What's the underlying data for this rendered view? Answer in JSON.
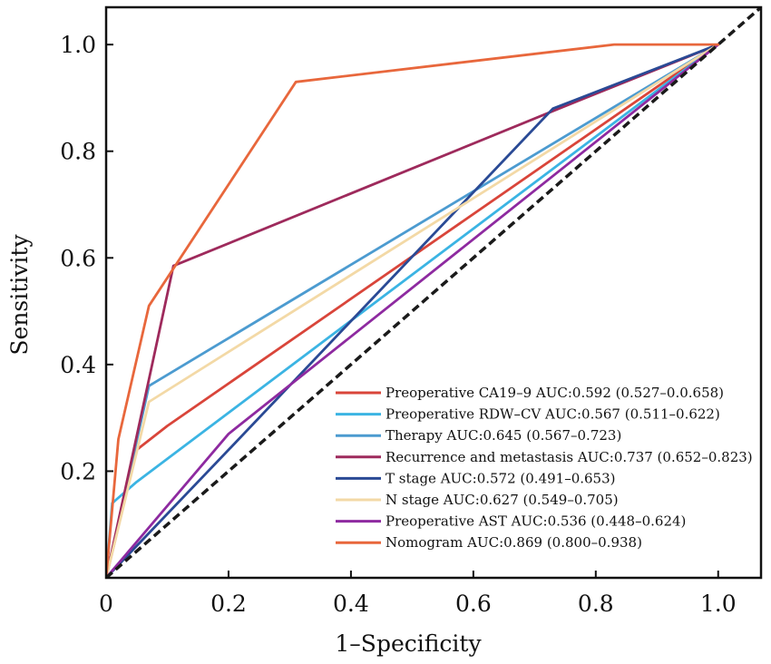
{
  "chart_data": {
    "type": "line",
    "title": "",
    "xlabel": "1–Specificity",
    "ylabel": "Sensitivity",
    "xlim": [
      0,
      1.07
    ],
    "ylim": [
      0,
      1.07
    ],
    "x_ticks": [
      0,
      0.2,
      0.4,
      0.6,
      0.8,
      1.0
    ],
    "x_tick_labels": [
      "0",
      "0.2",
      "0.4",
      "0.6",
      "0.8",
      "1.0"
    ],
    "y_ticks": [
      0.2,
      0.4,
      0.6,
      0.8,
      1.0
    ],
    "y_tick_labels": [
      "0.2",
      "0.4",
      "0.6",
      "0.8",
      "1.0"
    ],
    "grid": false,
    "legend_position": "bottom-right",
    "reference_line": {
      "style": "dashed",
      "color": "#1a1a1a",
      "points": [
        [
          0,
          0
        ],
        [
          1.07,
          1.07
        ]
      ]
    },
    "series": [
      {
        "name": "Preoperative CA19–9 AUC:0.592 (0.527–0.0.658)",
        "color": "#d9453a",
        "points": [
          [
            0,
            0
          ],
          [
            0.05,
            0.24
          ],
          [
            0.1,
            0.285
          ],
          [
            1,
            1
          ]
        ]
      },
      {
        "name": "Preoperative RDW–CV AUC:0.567 (0.511–0.622)",
        "color": "#3bb4e3",
        "points": [
          [
            0,
            0
          ],
          [
            0.01,
            0.14
          ],
          [
            0.05,
            0.18
          ],
          [
            1,
            1
          ]
        ]
      },
      {
        "name": "Therapy AUC:0.645 (0.567–0.723)",
        "color": "#4c9bd0",
        "points": [
          [
            0,
            0
          ],
          [
            0.07,
            0.36
          ],
          [
            1,
            1
          ]
        ]
      },
      {
        "name": "Recurrence and metastasis AUC:0.737 (0.652–0.823)",
        "color": "#9e2a5c",
        "points": [
          [
            0,
            0
          ],
          [
            0.11,
            0.585
          ],
          [
            0.74,
            0.88
          ],
          [
            1,
            1
          ]
        ]
      },
      {
        "name": "T stage AUC:0.572 (0.491–0.653)",
        "color": "#2a4a95",
        "points": [
          [
            0,
            0
          ],
          [
            0.2,
            0.24
          ],
          [
            0.73,
            0.88
          ],
          [
            1,
            1
          ]
        ]
      },
      {
        "name": "N stage AUC:0.627 (0.549–0.705)",
        "color": "#f3d9a6",
        "points": [
          [
            0,
            0
          ],
          [
            0.07,
            0.33
          ],
          [
            1,
            1
          ]
        ]
      },
      {
        "name": "Preoperative AST AUC:0.536 (0.448–0.624)",
        "color": "#8e2aa0",
        "points": [
          [
            0,
            0
          ],
          [
            0.2,
            0.27
          ],
          [
            1,
            1
          ]
        ]
      },
      {
        "name": "Nomogram AUC:0.869 (0.800–0.938)",
        "color": "#e8673c",
        "points": [
          [
            0,
            0
          ],
          [
            0.02,
            0.26
          ],
          [
            0.07,
            0.51
          ],
          [
            0.31,
            0.93
          ],
          [
            0.83,
            1.0
          ],
          [
            1,
            1
          ]
        ]
      }
    ]
  }
}
